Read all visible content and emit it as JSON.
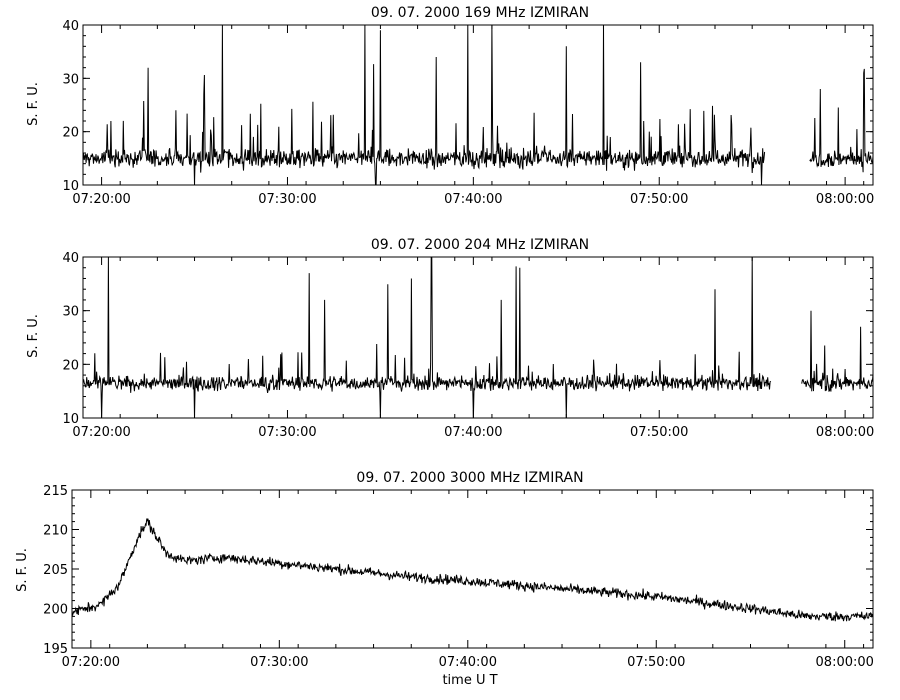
{
  "figure": {
    "xlabel": "time  U T",
    "line_color": "#000000",
    "background": "#ffffff"
  },
  "chart_data": [
    {
      "type": "line",
      "title": "09.  07.  2000    169  MHz    IZMIRAN",
      "ylabel": "S. F. U.",
      "xlim": [
        "07:19:00",
        "08:01:30"
      ],
      "ylim": [
        10,
        40
      ],
      "yticks": [
        "10",
        "20",
        "30",
        "40"
      ],
      "xticks": [
        "07:20:00",
        "07:30:00",
        "07:40:00",
        "07:50:00",
        "08:00:00"
      ],
      "baseline": 15,
      "noise": 1.3,
      "spike_rate": 0.05,
      "spike_max": 9,
      "gaps": [
        [
          "07:55:40",
          "07:58:05"
        ]
      ],
      "features": [
        {
          "t": "07:20:30",
          "v": 22
        },
        {
          "t": "07:22:30",
          "v": 32
        },
        {
          "t": "07:24:00",
          "v": 24
        },
        {
          "t": "07:25:00",
          "v": 10
        },
        {
          "t": "07:25:30",
          "v": 27
        },
        {
          "t": "07:26:30",
          "v": 40
        },
        {
          "t": "07:34:10",
          "v": 40
        },
        {
          "t": "07:34:45",
          "v": 10
        },
        {
          "t": "07:35:00",
          "v": 39
        },
        {
          "t": "07:38:00",
          "v": 34
        },
        {
          "t": "07:41:00",
          "v": 40
        },
        {
          "t": "07:45:00",
          "v": 36
        },
        {
          "t": "07:47:00",
          "v": 40
        },
        {
          "t": "07:49:00",
          "v": 33
        },
        {
          "t": "07:55:30",
          "v": 10
        },
        {
          "t": "07:58:40",
          "v": 28
        },
        {
          "t": "08:01:00",
          "v": 31
        }
      ]
    },
    {
      "type": "line",
      "title": "09.  07.  2000    204  MHz    IZMIRAN",
      "ylabel": "S. F. U.",
      "xlim": [
        "07:19:00",
        "08:01:30"
      ],
      "ylim": [
        10,
        40
      ],
      "yticks": [
        "10",
        "20",
        "30",
        "40"
      ],
      "xticks": [
        "07:20:00",
        "07:30:00",
        "07:40:00",
        "07:50:00",
        "08:00:00"
      ],
      "baseline": 16.5,
      "noise": 1.0,
      "spike_rate": 0.04,
      "spike_max": 6,
      "gaps": [
        [
          "07:56:00",
          "07:57:40"
        ]
      ],
      "features": [
        {
          "t": "07:20:00",
          "v": 10
        },
        {
          "t": "07:25:00",
          "v": 10
        },
        {
          "t": "07:31:10",
          "v": 37
        },
        {
          "t": "07:32:00",
          "v": 32
        },
        {
          "t": "07:35:00",
          "v": 10
        },
        {
          "t": "07:36:40",
          "v": 36
        },
        {
          "t": "07:37:45",
          "v": 40
        },
        {
          "t": "07:40:00",
          "v": 10
        },
        {
          "t": "07:41:30",
          "v": 32
        },
        {
          "t": "07:42:30",
          "v": 38
        },
        {
          "t": "07:45:00",
          "v": 10
        },
        {
          "t": "07:53:00",
          "v": 34
        },
        {
          "t": "07:55:00",
          "v": 40
        },
        {
          "t": "07:58:10",
          "v": 30
        },
        {
          "t": "08:00:50",
          "v": 27
        }
      ]
    },
    {
      "type": "line",
      "title": "09.  07.  2000    3000  MHz    IZMIRAN",
      "ylabel": "S. F. U.",
      "xlim": [
        "07:19:00",
        "08:01:30"
      ],
      "ylim": [
        195,
        215
      ],
      "yticks": [
        "195",
        "200",
        "205",
        "210",
        "215"
      ],
      "xticks": [
        "07:20:00",
        "07:30:00",
        "07:40:00",
        "07:50:00",
        "08:00:00"
      ],
      "noise": 0.45,
      "trend": [
        {
          "t": "07:19:00",
          "v": 199.5
        },
        {
          "t": "07:20:30",
          "v": 200.5
        },
        {
          "t": "07:21:30",
          "v": 203.0
        },
        {
          "t": "07:22:30",
          "v": 209.0
        },
        {
          "t": "07:23:00",
          "v": 211.0
        },
        {
          "t": "07:24:00",
          "v": 207.0
        },
        {
          "t": "07:25:00",
          "v": 206.0
        },
        {
          "t": "07:27:00",
          "v": 206.5
        },
        {
          "t": "07:29:00",
          "v": 206.0
        },
        {
          "t": "07:33:00",
          "v": 205.0
        },
        {
          "t": "07:37:00",
          "v": 204.0
        },
        {
          "t": "07:40:00",
          "v": 203.5
        },
        {
          "t": "07:45:00",
          "v": 202.5
        },
        {
          "t": "07:50:00",
          "v": 201.5
        },
        {
          "t": "07:55:00",
          "v": 200.0
        },
        {
          "t": "07:58:00",
          "v": 199.0
        },
        {
          "t": "08:01:30",
          "v": 199.0
        }
      ]
    }
  ]
}
